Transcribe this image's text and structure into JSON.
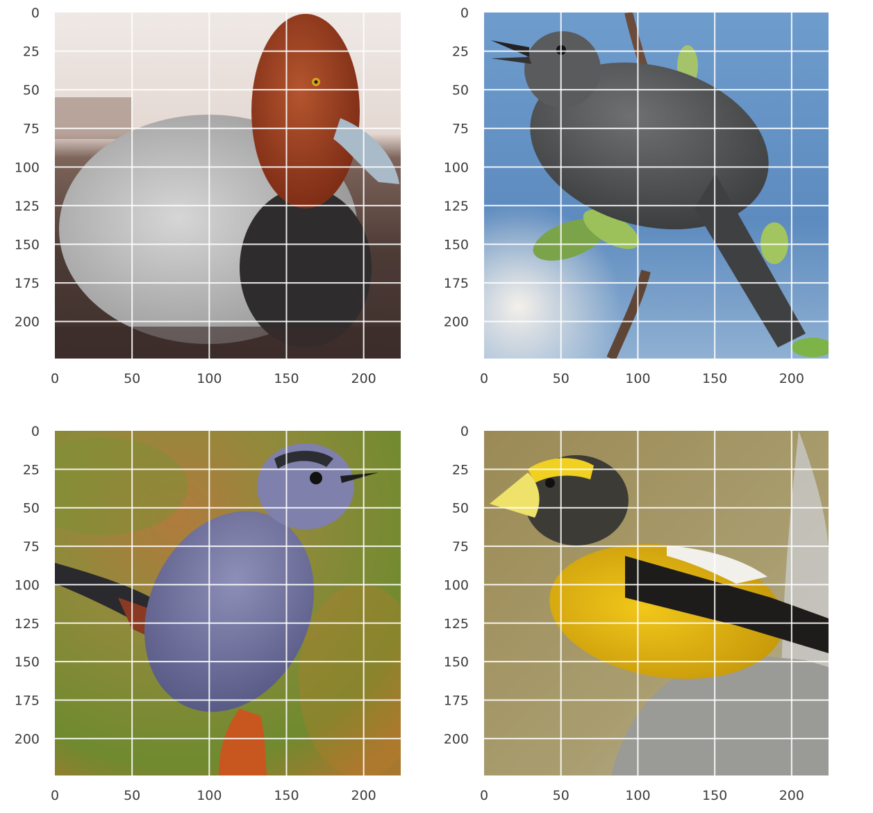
{
  "chart_data": [
    {
      "type": "image",
      "xlim": [
        0,
        224
      ],
      "ylim": [
        224,
        0
      ],
      "xticks": [
        0,
        50,
        100,
        150,
        200
      ],
      "yticks": [
        0,
        25,
        50,
        75,
        100,
        125,
        150,
        175,
        200
      ],
      "grid": true,
      "image_subject": "redhead duck"
    },
    {
      "type": "image",
      "xlim": [
        0,
        224
      ],
      "ylim": [
        224,
        0
      ],
      "xticks": [
        0,
        50,
        100,
        150,
        200
      ],
      "yticks": [
        0,
        25,
        50,
        75,
        100,
        125,
        150,
        175,
        200
      ],
      "grid": true,
      "image_subject": "gray catbird on branch"
    },
    {
      "type": "image",
      "xlim": [
        0,
        224
      ],
      "ylim": [
        224,
        0
      ],
      "xticks": [
        0,
        50,
        100,
        150,
        200
      ],
      "yticks": [
        0,
        25,
        50,
        75,
        100,
        125,
        150,
        175,
        200
      ],
      "grid": true,
      "image_subject": "gray catbird on perch"
    },
    {
      "type": "image",
      "xlim": [
        0,
        224
      ],
      "ylim": [
        224,
        0
      ],
      "xticks": [
        0,
        50,
        100,
        150,
        200
      ],
      "yticks": [
        0,
        25,
        50,
        75,
        100,
        125,
        150,
        175,
        200
      ],
      "grid": true,
      "image_subject": "evening grosbeak"
    }
  ]
}
